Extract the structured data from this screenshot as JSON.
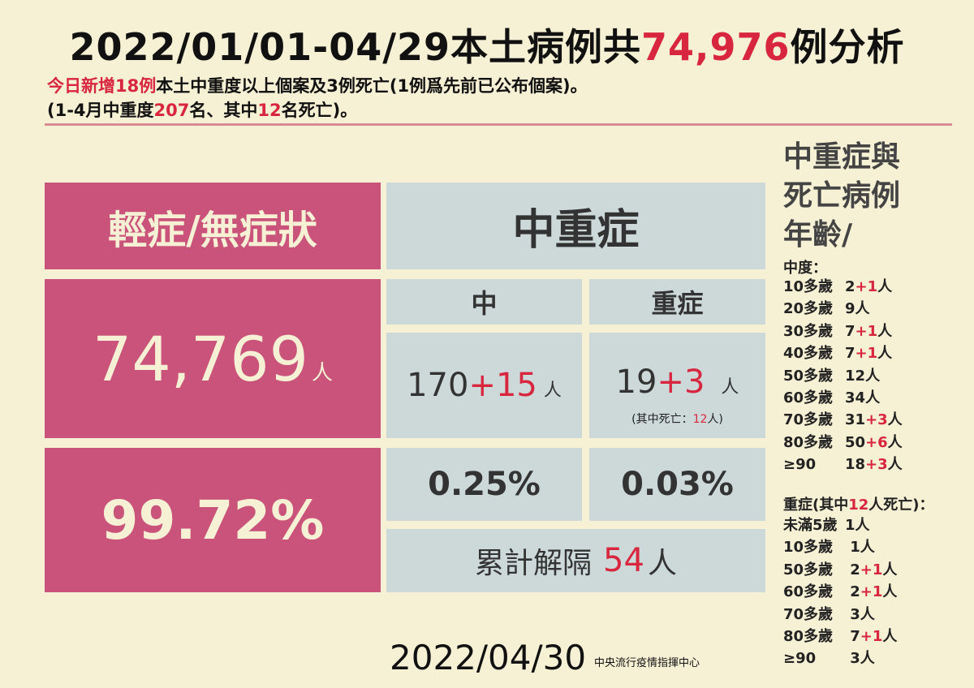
{
  "title": {
    "prefix": "2022/01/01-04/29本土病例共",
    "count": "74,976",
    "suffix": "例分析"
  },
  "subtitle": {
    "line1_red": "今日新增18例",
    "line1_rest": "本土中重度以上個案及3例死亡(1例爲先前已公布個案)。",
    "line2_a": "(1-4月中重度",
    "line2_num1": "207",
    "line2_b": "名、其中",
    "line2_num2": "12",
    "line2_c": "名死亡)。"
  },
  "mild": {
    "label": "輕症/無症狀",
    "count": "74,769",
    "unit": "人",
    "rate": "99.72%"
  },
  "severe_group": {
    "label": "中重症",
    "moderate": {
      "label": "中",
      "base": "170",
      "added": "+15",
      "unit": "人",
      "rate": "0.25%"
    },
    "severe": {
      "label": "重症",
      "base": "19",
      "added": "+3",
      "unit": "人",
      "death_note_prefix": "(其中死亡：",
      "death_count": "12",
      "death_note_suffix": "人)",
      "rate": "0.03%"
    },
    "released": {
      "label": "累計解隔",
      "count": "54",
      "unit": "人"
    }
  },
  "side": {
    "title": [
      "中重症與",
      "死亡病例",
      "年齡/"
    ],
    "moderate_label": "中度：",
    "moderate_ages": [
      {
        "age": "10多歲",
        "base": "2",
        "added": "+1",
        "unit": "人"
      },
      {
        "age": "20多歲",
        "base": "9",
        "added": "",
        "unit": "人"
      },
      {
        "age": "30多歲",
        "base": "7",
        "added": "+1",
        "unit": "人"
      },
      {
        "age": "40多歲",
        "base": "7",
        "added": "+1",
        "unit": "人"
      },
      {
        "age": "50多歲",
        "base": "12",
        "added": "",
        "unit": "人"
      },
      {
        "age": "60多歲",
        "base": "34",
        "added": "",
        "unit": "人"
      },
      {
        "age": "70多歲",
        "base": "31",
        "added": "+3",
        "unit": "人"
      },
      {
        "age": "80多歲",
        "base": "50",
        "added": "+6",
        "unit": "人"
      },
      {
        "age": " ≥90",
        "base": "18",
        "added": "+3",
        "unit": "人"
      }
    ],
    "severe_label_a": "重症(其中",
    "severe_label_num": "12",
    "severe_label_b": "人死亡)：",
    "severe_ages": [
      {
        "age": "未滿5歲",
        "base": "1",
        "added": "",
        "unit": "人"
      },
      {
        "age": "10多歲",
        "base": " 1",
        "added": "",
        "unit": "人"
      },
      {
        "age": "50多歲",
        "base": " 2",
        "added": "+1",
        "unit": "人"
      },
      {
        "age": "60多歲",
        "base": " 2",
        "added": "+1",
        "unit": "人"
      },
      {
        "age": "70多歲",
        "base": " 3",
        "added": "",
        "unit": "人"
      },
      {
        "age": "80多歲",
        "base": " 7",
        "added": "+1",
        "unit": "人"
      },
      {
        "age": " ≥90",
        "base": " 3",
        "added": "",
        "unit": "人"
      }
    ]
  },
  "footer": {
    "date": "2022/04/30",
    "org": "中央流行疫情指揮中心"
  },
  "colors": {
    "background": "#f6f0d4",
    "pink": "#c9537a",
    "grey": "#cdd8d8",
    "red": "#d8263f"
  }
}
